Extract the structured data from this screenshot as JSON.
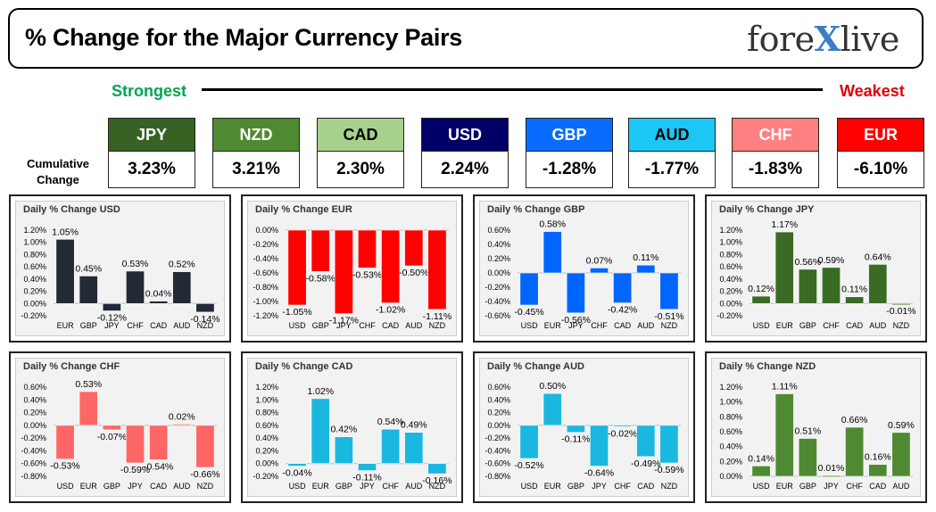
{
  "header": {
    "title": "% Change for the Major Currency Pairs",
    "logo_left": "fore",
    "logo_x": "X",
    "logo_right": "live"
  },
  "scale": {
    "strongest": "Strongest",
    "weakest": "Weakest"
  },
  "cumulative_label": "Cumulative Change",
  "currencies": [
    {
      "code": "JPY",
      "value": "3.23%",
      "bg": "#376224",
      "fg": "#ffffff"
    },
    {
      "code": "NZD",
      "value": "3.21%",
      "bg": "#4f8a32",
      "fg": "#ffffff"
    },
    {
      "code": "CAD",
      "value": "2.30%",
      "bg": "#a8d08d",
      "fg": "#000000"
    },
    {
      "code": "USD",
      "value": "2.24%",
      "bg": "#000066",
      "fg": "#ffffff"
    },
    {
      "code": "GBP",
      "value": "-1.28%",
      "bg": "#0a6cff",
      "fg": "#ffffff"
    },
    {
      "code": "AUD",
      "value": "-1.77%",
      "bg": "#1cc7f5",
      "fg": "#000000"
    },
    {
      "code": "CHF",
      "value": "-1.83%",
      "bg": "#ff8080",
      "fg": "#ffffff"
    },
    {
      "code": "EUR",
      "value": "-6.10%",
      "bg": "#ff0000",
      "fg": "#ffffff"
    }
  ],
  "chart_data": [
    {
      "type": "bar",
      "title": "Daily % Change USD",
      "color": "#222a35",
      "categories": [
        "EUR",
        "GBP",
        "JPY",
        "CHF",
        "CAD",
        "AUD",
        "NZD"
      ],
      "values": [
        1.05,
        0.45,
        -0.12,
        0.53,
        0.04,
        0.52,
        -0.14
      ],
      "labels": [
        "1.05%",
        "0.45%",
        "-0.12%",
        "0.53%",
        "0.04%",
        "0.52%",
        "-0.14%"
      ],
      "ylim": [
        -0.2,
        1.2
      ],
      "ticks": [
        "1.20%",
        "1.00%",
        "0.80%",
        "0.60%",
        "0.40%",
        "0.20%",
        "0.00%",
        "-0.20%"
      ]
    },
    {
      "type": "bar",
      "title": "Daily % Change EUR",
      "color": "#ff0000",
      "categories": [
        "USD",
        "GBP",
        "JPY",
        "CHF",
        "CAD",
        "AUD",
        "NZD"
      ],
      "values": [
        -1.05,
        -0.58,
        -1.17,
        -0.53,
        -1.02,
        -0.5,
        -1.11
      ],
      "labels": [
        "-1.05%",
        "-0.58%",
        "-1.17%",
        "-0.53%",
        "-1.02%",
        "-0.50%",
        "-1.11%"
      ],
      "ylim": [
        -1.2,
        0.0
      ],
      "ticks": [
        "0.00%",
        "-0.20%",
        "-0.40%",
        "-0.60%",
        "-0.80%",
        "-1.00%",
        "-1.20%"
      ]
    },
    {
      "type": "bar",
      "title": "Daily % Change GBP",
      "color": "#0066ff",
      "categories": [
        "USD",
        "EUR",
        "JPY",
        "CHF",
        "CAD",
        "AUD",
        "NZD"
      ],
      "values": [
        -0.45,
        0.58,
        -0.56,
        0.07,
        -0.42,
        0.11,
        -0.51
      ],
      "labels": [
        "-0.45%",
        "0.58%",
        "-0.56%",
        "0.07%",
        "-0.42%",
        "0.11%",
        "-0.51%"
      ],
      "ylim": [
        -0.6,
        0.6
      ],
      "ticks": [
        "0.60%",
        "0.40%",
        "0.20%",
        "0.00%",
        "-0.20%",
        "-0.40%",
        "-0.60%"
      ]
    },
    {
      "type": "bar",
      "title": "Daily % Change JPY",
      "color": "#3a6b25",
      "categories": [
        "USD",
        "EUR",
        "GBP",
        "CHF",
        "CAD",
        "AUD",
        "NZD"
      ],
      "values": [
        0.12,
        1.17,
        0.56,
        0.59,
        0.11,
        0.64,
        -0.01
      ],
      "labels": [
        "0.12%",
        "1.17%",
        "0.56%",
        "0.59%",
        "0.11%",
        "0.64%",
        "-0.01%"
      ],
      "ylim": [
        -0.2,
        1.2
      ],
      "ticks": [
        "1.20%",
        "1.00%",
        "0.80%",
        "0.60%",
        "0.40%",
        "0.20%",
        "0.00%",
        "-0.20%"
      ]
    },
    {
      "type": "bar",
      "title": "Daily % Change CHF",
      "color": "#ff6666",
      "categories": [
        "USD",
        "EUR",
        "GBP",
        "JPY",
        "CAD",
        "AUD",
        "NZD"
      ],
      "values": [
        -0.53,
        0.53,
        -0.07,
        -0.59,
        -0.54,
        0.02,
        -0.66
      ],
      "labels": [
        "-0.53%",
        "0.53%",
        "-0.07%",
        "-0.59%",
        "-0.54%",
        "0.02%",
        "-0.66%"
      ],
      "ylim": [
        -0.8,
        0.6
      ],
      "ticks": [
        "0.60%",
        "0.40%",
        "0.20%",
        "0.00%",
        "-0.20%",
        "-0.40%",
        "-0.60%",
        "-0.80%"
      ]
    },
    {
      "type": "bar",
      "title": "Daily % Change CAD",
      "color": "#1ab8e0",
      "categories": [
        "USD",
        "EUR",
        "GBP",
        "JPY",
        "CHF",
        "AUD",
        "NZD"
      ],
      "values": [
        -0.04,
        1.02,
        0.42,
        -0.11,
        0.54,
        0.49,
        -0.16
      ],
      "labels": [
        "-0.04%",
        "1.02%",
        "0.42%",
        "-0.11%",
        "0.54%",
        "0.49%",
        "-0.16%"
      ],
      "ylim": [
        -0.2,
        1.2
      ],
      "ticks": [
        "1.20%",
        "1.00%",
        "0.80%",
        "0.60%",
        "0.40%",
        "0.20%",
        "0.00%",
        "-0.20%"
      ]
    },
    {
      "type": "bar",
      "title": "Daily % Change AUD",
      "color": "#1ab8e0",
      "categories": [
        "USD",
        "EUR",
        "GBP",
        "JPY",
        "CHF",
        "CAD",
        "NZD"
      ],
      "values": [
        -0.52,
        0.5,
        -0.11,
        -0.64,
        -0.02,
        -0.49,
        -0.59
      ],
      "labels": [
        "-0.52%",
        "0.50%",
        "-0.11%",
        "-0.64%",
        "-0.02%",
        "-0.49%",
        "-0.59%"
      ],
      "ylim": [
        -0.8,
        0.6
      ],
      "ticks": [
        "0.60%",
        "0.40%",
        "0.20%",
        "0.00%",
        "-0.20%",
        "-0.40%",
        "-0.60%",
        "-0.80%"
      ]
    },
    {
      "type": "bar",
      "title": "Daily % Change NZD",
      "color": "#4f8a32",
      "categories": [
        "USD",
        "EUR",
        "GBP",
        "JPY",
        "CHF",
        "CAD",
        "AUD"
      ],
      "values": [
        0.14,
        1.11,
        0.51,
        0.01,
        0.66,
        0.16,
        0.59
      ],
      "labels": [
        "0.14%",
        "1.11%",
        "0.51%",
        "0.01%",
        "0.66%",
        "0.16%",
        "0.59%"
      ],
      "ylim": [
        0.0,
        1.2
      ],
      "ticks": [
        "1.20%",
        "1.00%",
        "0.80%",
        "0.60%",
        "0.40%",
        "0.20%",
        "0.00%"
      ]
    }
  ]
}
